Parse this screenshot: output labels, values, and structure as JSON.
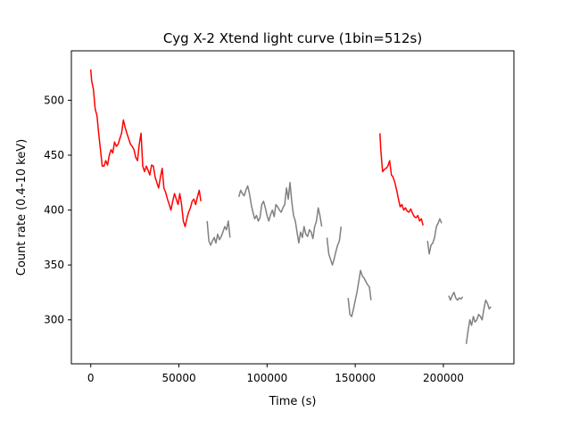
{
  "chart_data": {
    "type": "line",
    "title": "Cyg X-2 Xtend light curve (1bin=512s)",
    "xlabel": "Time (s)",
    "ylabel": "Count rate (0.4-10 keV)",
    "xlim": [
      -11000,
      240000
    ],
    "ylim": [
      260,
      545
    ],
    "xticks": [
      0,
      50000,
      100000,
      150000,
      200000
    ],
    "xtick_labels": [
      "0",
      "50000",
      "100000",
      "150000",
      "200000"
    ],
    "yticks": [
      300,
      350,
      400,
      450,
      500
    ],
    "ytick_labels": [
      "300",
      "350",
      "400",
      "450",
      "500"
    ],
    "grid": false,
    "series": [
      {
        "color": "#ff0000",
        "segments": [
          [
            [
              0,
              528
            ],
            [
              500,
              518
            ],
            [
              1500,
              510
            ],
            [
              2500,
              492
            ],
            [
              3500,
              486
            ],
            [
              4500,
              470
            ],
            [
              5500,
              455
            ],
            [
              6500,
              440
            ],
            [
              7500,
              440
            ],
            [
              8500,
              445
            ],
            [
              9500,
              441
            ],
            [
              10500,
              450
            ],
            [
              11500,
              455
            ],
            [
              12500,
              452
            ],
            [
              13500,
              462
            ],
            [
              14500,
              458
            ],
            [
              15500,
              460
            ],
            [
              16500,
              465
            ],
            [
              17500,
              470
            ],
            [
              18500,
              482
            ],
            [
              19500,
              475
            ],
            [
              20500,
              470
            ],
            [
              21500,
              465
            ],
            [
              22500,
              460
            ],
            [
              23500,
              458
            ],
            [
              24500,
              455
            ],
            [
              25500,
              448
            ],
            [
              26500,
              445
            ],
            [
              27500,
              460
            ],
            [
              28500,
              470
            ],
            [
              29500,
              440
            ],
            [
              30500,
              435
            ],
            [
              31500,
              440
            ],
            [
              32500,
              436
            ],
            [
              33500,
              432
            ],
            [
              34500,
              441
            ],
            [
              35500,
              440
            ],
            [
              36500,
              430
            ],
            [
              37500,
              425
            ],
            [
              38500,
              420
            ],
            [
              39500,
              430
            ],
            [
              40500,
              438
            ],
            [
              41500,
              420
            ],
            [
              42500,
              416
            ],
            [
              43500,
              410
            ],
            [
              44500,
              405
            ],
            [
              45500,
              400
            ],
            [
              46500,
              408
            ],
            [
              47500,
              415
            ],
            [
              48500,
              410
            ],
            [
              49500,
              405
            ],
            [
              50500,
              415
            ],
            [
              51500,
              405
            ],
            [
              52500,
              390
            ],
            [
              53500,
              385
            ],
            [
              54500,
              392
            ],
            [
              55500,
              398
            ],
            [
              56500,
              402
            ],
            [
              57500,
              408
            ],
            [
              58500,
              410
            ],
            [
              59500,
              405
            ],
            [
              60500,
              412
            ],
            [
              61500,
              418
            ],
            [
              62500,
              408
            ]
          ],
          [
            [
              164000,
              470
            ],
            [
              164500,
              455
            ],
            [
              165500,
              435
            ],
            [
              166500,
              437
            ],
            [
              167500,
              438
            ],
            [
              168500,
              440
            ],
            [
              169500,
              445
            ],
            [
              170500,
              432
            ],
            [
              171500,
              430
            ],
            [
              172500,
              425
            ],
            [
              173500,
              418
            ],
            [
              174500,
              410
            ],
            [
              175500,
              403
            ],
            [
              176500,
              405
            ],
            [
              177500,
              400
            ],
            [
              178500,
              402
            ],
            [
              179500,
              399
            ],
            [
              180500,
              398
            ],
            [
              181500,
              401
            ],
            [
              182500,
              397
            ],
            [
              183500,
              394
            ],
            [
              184500,
              393
            ],
            [
              185500,
              395
            ],
            [
              186500,
              390
            ],
            [
              187500,
              392
            ],
            [
              188500,
              386
            ]
          ]
        ]
      },
      {
        "color": "#808080",
        "segments": [
          [
            [
              66000,
              390
            ],
            [
              67000,
              372
            ],
            [
              68000,
              368
            ],
            [
              69000,
              372
            ],
            [
              70000,
              375
            ],
            [
              71000,
              370
            ],
            [
              72000,
              378
            ],
            [
              73000,
              373
            ],
            [
              74000,
              376
            ],
            [
              75000,
              380
            ],
            [
              76000,
              385
            ],
            [
              77000,
              382
            ],
            [
              78000,
              390
            ],
            [
              79000,
              375
            ]
          ],
          [
            [
              84000,
              412
            ],
            [
              85000,
              418
            ],
            [
              86000,
              415
            ],
            [
              87000,
              413
            ],
            [
              88000,
              418
            ],
            [
              89000,
              422
            ],
            [
              90000,
              415
            ],
            [
              91000,
              405
            ],
            [
              92000,
              398
            ],
            [
              93000,
              392
            ],
            [
              94000,
              395
            ],
            [
              95000,
              390
            ],
            [
              96000,
              393
            ],
            [
              97000,
              405
            ],
            [
              98000,
              408
            ],
            [
              99000,
              402
            ],
            [
              100000,
              395
            ],
            [
              101000,
              390
            ],
            [
              102000,
              396
            ],
            [
              103000,
              400
            ],
            [
              104000,
              394
            ],
            [
              105000,
              405
            ],
            [
              106000,
              403
            ],
            [
              107000,
              400
            ],
            [
              108000,
              398
            ],
            [
              109000,
              402
            ],
            [
              110000,
              405
            ],
            [
              111000,
              420
            ],
            [
              112000,
              410
            ],
            [
              113000,
              425
            ],
            [
              114000,
              408
            ],
            [
              115000,
              395
            ],
            [
              116000,
              390
            ],
            [
              117000,
              380
            ],
            [
              118000,
              370
            ],
            [
              119000,
              380
            ],
            [
              120000,
              375
            ],
            [
              121000,
              385
            ],
            [
              122000,
              378
            ],
            [
              123000,
              376
            ],
            [
              124000,
              382
            ],
            [
              125000,
              380
            ],
            [
              126000,
              374
            ],
            [
              127000,
              385
            ],
            [
              128000,
              390
            ],
            [
              129000,
              402
            ],
            [
              130000,
              395
            ],
            [
              131000,
              385
            ]
          ],
          [
            [
              134000,
              375
            ],
            [
              135000,
              360
            ],
            [
              136000,
              355
            ],
            [
              137000,
              350
            ],
            [
              138000,
              355
            ],
            [
              139000,
              362
            ],
            [
              140000,
              368
            ],
            [
              141000,
              372
            ],
            [
              142000,
              385
            ]
          ],
          [
            [
              146000,
              320
            ],
            [
              147000,
              305
            ],
            [
              148000,
              303
            ],
            [
              149000,
              310
            ],
            [
              150000,
              318
            ],
            [
              151000,
              325
            ],
            [
              152000,
              335
            ],
            [
              153000,
              345
            ],
            [
              154000,
              340
            ],
            [
              155000,
              338
            ],
            [
              156000,
              335
            ],
            [
              157000,
              332
            ],
            [
              158000,
              330
            ],
            [
              159000,
              318
            ]
          ],
          [
            [
              191000,
              372
            ],
            [
              192000,
              360
            ],
            [
              193000,
              368
            ],
            [
              194000,
              370
            ],
            [
              195000,
              375
            ],
            [
              196000,
              385
            ],
            [
              197000,
              388
            ],
            [
              198000,
              392
            ],
            [
              199000,
              388
            ]
          ],
          [
            [
              203000,
              322
            ],
            [
              204000,
              318
            ],
            [
              205000,
              322
            ],
            [
              206000,
              325
            ],
            [
              207000,
              320
            ],
            [
              208000,
              318
            ],
            [
              209000,
              320
            ],
            [
              210000,
              319
            ],
            [
              211000,
              321
            ]
          ],
          [
            [
              213000,
              278
            ],
            [
              214000,
              290
            ],
            [
              215000,
              300
            ],
            [
              216000,
              295
            ],
            [
              217000,
              303
            ],
            [
              218000,
              298
            ],
            [
              219000,
              300
            ],
            [
              220000,
              305
            ],
            [
              221000,
              303
            ],
            [
              222000,
              300
            ],
            [
              223000,
              310
            ],
            [
              224000,
              318
            ],
            [
              225000,
              315
            ],
            [
              226000,
              310
            ],
            [
              227000,
              312
            ]
          ]
        ]
      }
    ]
  }
}
